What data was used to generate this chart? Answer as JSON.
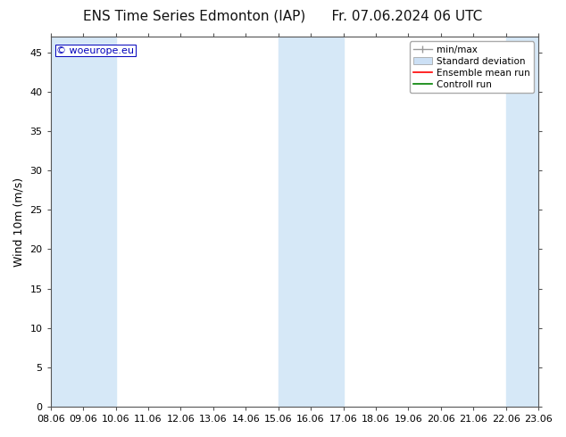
{
  "title_left": "ENS Time Series Edmonton (IAP)",
  "title_right": "Fr. 07.06.2024 06 UTC",
  "ylabel": "Wind 10m (m/s)",
  "watermark": "© woeurope.eu",
  "xticklabels": [
    "08.06",
    "09.06",
    "10.06",
    "11.06",
    "12.06",
    "13.06",
    "14.06",
    "15.06",
    "16.06",
    "17.06",
    "18.06",
    "19.06",
    "20.06",
    "21.06",
    "22.06",
    "23.06"
  ],
  "yticks": [
    0,
    5,
    10,
    15,
    20,
    25,
    30,
    35,
    40,
    45
  ],
  "ylim": [
    0,
    47
  ],
  "xlim": [
    0,
    15
  ],
  "background_color": "#ffffff",
  "plot_bg_color": "#ffffff",
  "shaded_bands": [
    {
      "x_start": 0.0,
      "x_end": 1.0,
      "color": "#d6e8f7"
    },
    {
      "x_start": 1.0,
      "x_end": 2.0,
      "color": "#d6e8f7"
    },
    {
      "x_start": 7.0,
      "x_end": 8.0,
      "color": "#d6e8f7"
    },
    {
      "x_start": 8.0,
      "x_end": 9.0,
      "color": "#d6e8f7"
    },
    {
      "x_start": 14.0,
      "x_end": 15.0,
      "color": "#d6e8f7"
    }
  ],
  "legend_labels": [
    "min/max",
    "Standard deviation",
    "Ensemble mean run",
    "Controll run"
  ],
  "minmax_color": "#999999",
  "std_color": "#cce0f5",
  "mean_color": "#ff0000",
  "control_color": "#008000",
  "title_fontsize": 11,
  "axis_fontsize": 9,
  "tick_fontsize": 8,
  "legend_fontsize": 7.5,
  "watermark_color": "#0000bb",
  "watermark_fontsize": 8
}
